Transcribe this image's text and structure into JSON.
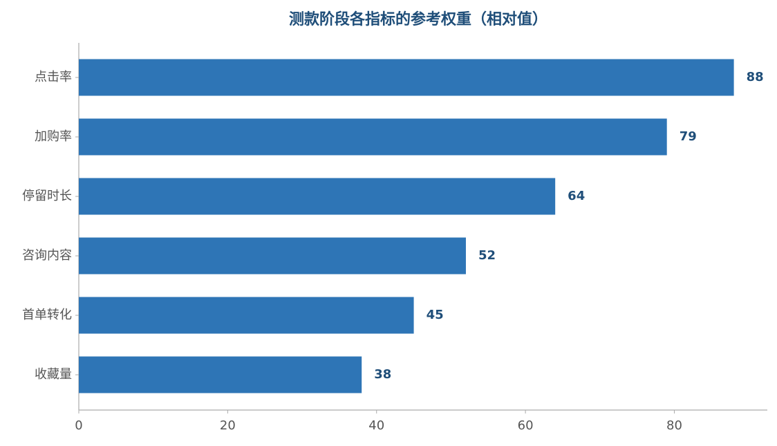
{
  "chart_data": {
    "type": "bar",
    "orientation": "horizontal",
    "title": "测款阶段各指标的参考权重（相对值）",
    "categories": [
      "点击率",
      "加购率",
      "停留时长",
      "咨询内容",
      "首单转化",
      "收藏量"
    ],
    "values": [
      88,
      79,
      64,
      52,
      45,
      38
    ],
    "color": "#2e75b6",
    "xlim": [
      0,
      92.4
    ],
    "xticks": [
      0,
      20,
      40,
      60,
      80
    ],
    "grid": false
  }
}
